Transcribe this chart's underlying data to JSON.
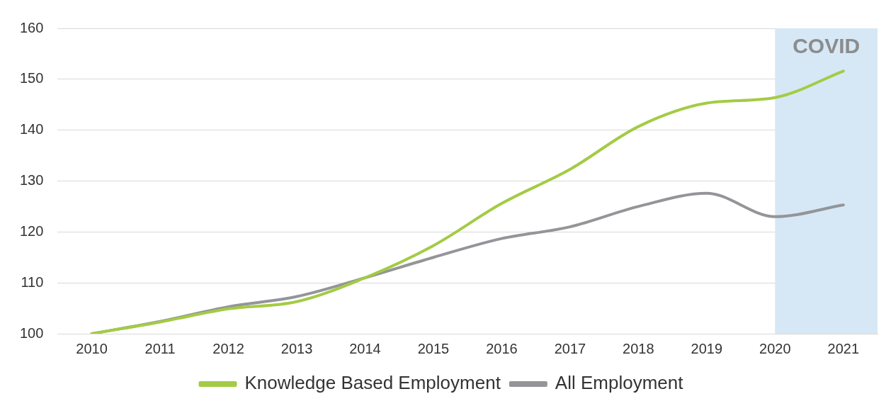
{
  "chart_data": {
    "type": "line",
    "x": [
      2010,
      2011,
      2012,
      2013,
      2014,
      2015,
      2016,
      2017,
      2018,
      2019,
      2020,
      2021
    ],
    "xlim": [
      2009.5,
      2021.5
    ],
    "xticks": [
      2010,
      2011,
      2012,
      2013,
      2014,
      2015,
      2016,
      2017,
      2018,
      2019,
      2020,
      2021
    ],
    "ylim": [
      100,
      160
    ],
    "yticks": [
      100,
      110,
      120,
      130,
      140,
      150,
      160
    ],
    "grid": "y",
    "legend": "bottom",
    "marker": "none",
    "line_style": "solid",
    "series": [
      {
        "name": "Knowledge Based Employment",
        "color": "#a4cb45",
        "values": [
          100,
          102.3,
          104.9,
          106.3,
          111,
          117.3,
          125.6,
          132.3,
          140.7,
          145.3,
          146.4,
          151.6
        ]
      },
      {
        "name": "All Employment",
        "color": "#939598",
        "values": [
          100,
          102.4,
          105.3,
          107.3,
          111,
          115,
          118.7,
          121,
          125,
          127.6,
          123,
          125.3
        ]
      }
    ],
    "bands": [
      {
        "axis": "x",
        "from": 2020,
        "to": 2021.5,
        "label": "COVID",
        "color": "#d6e8f6"
      }
    ]
  }
}
